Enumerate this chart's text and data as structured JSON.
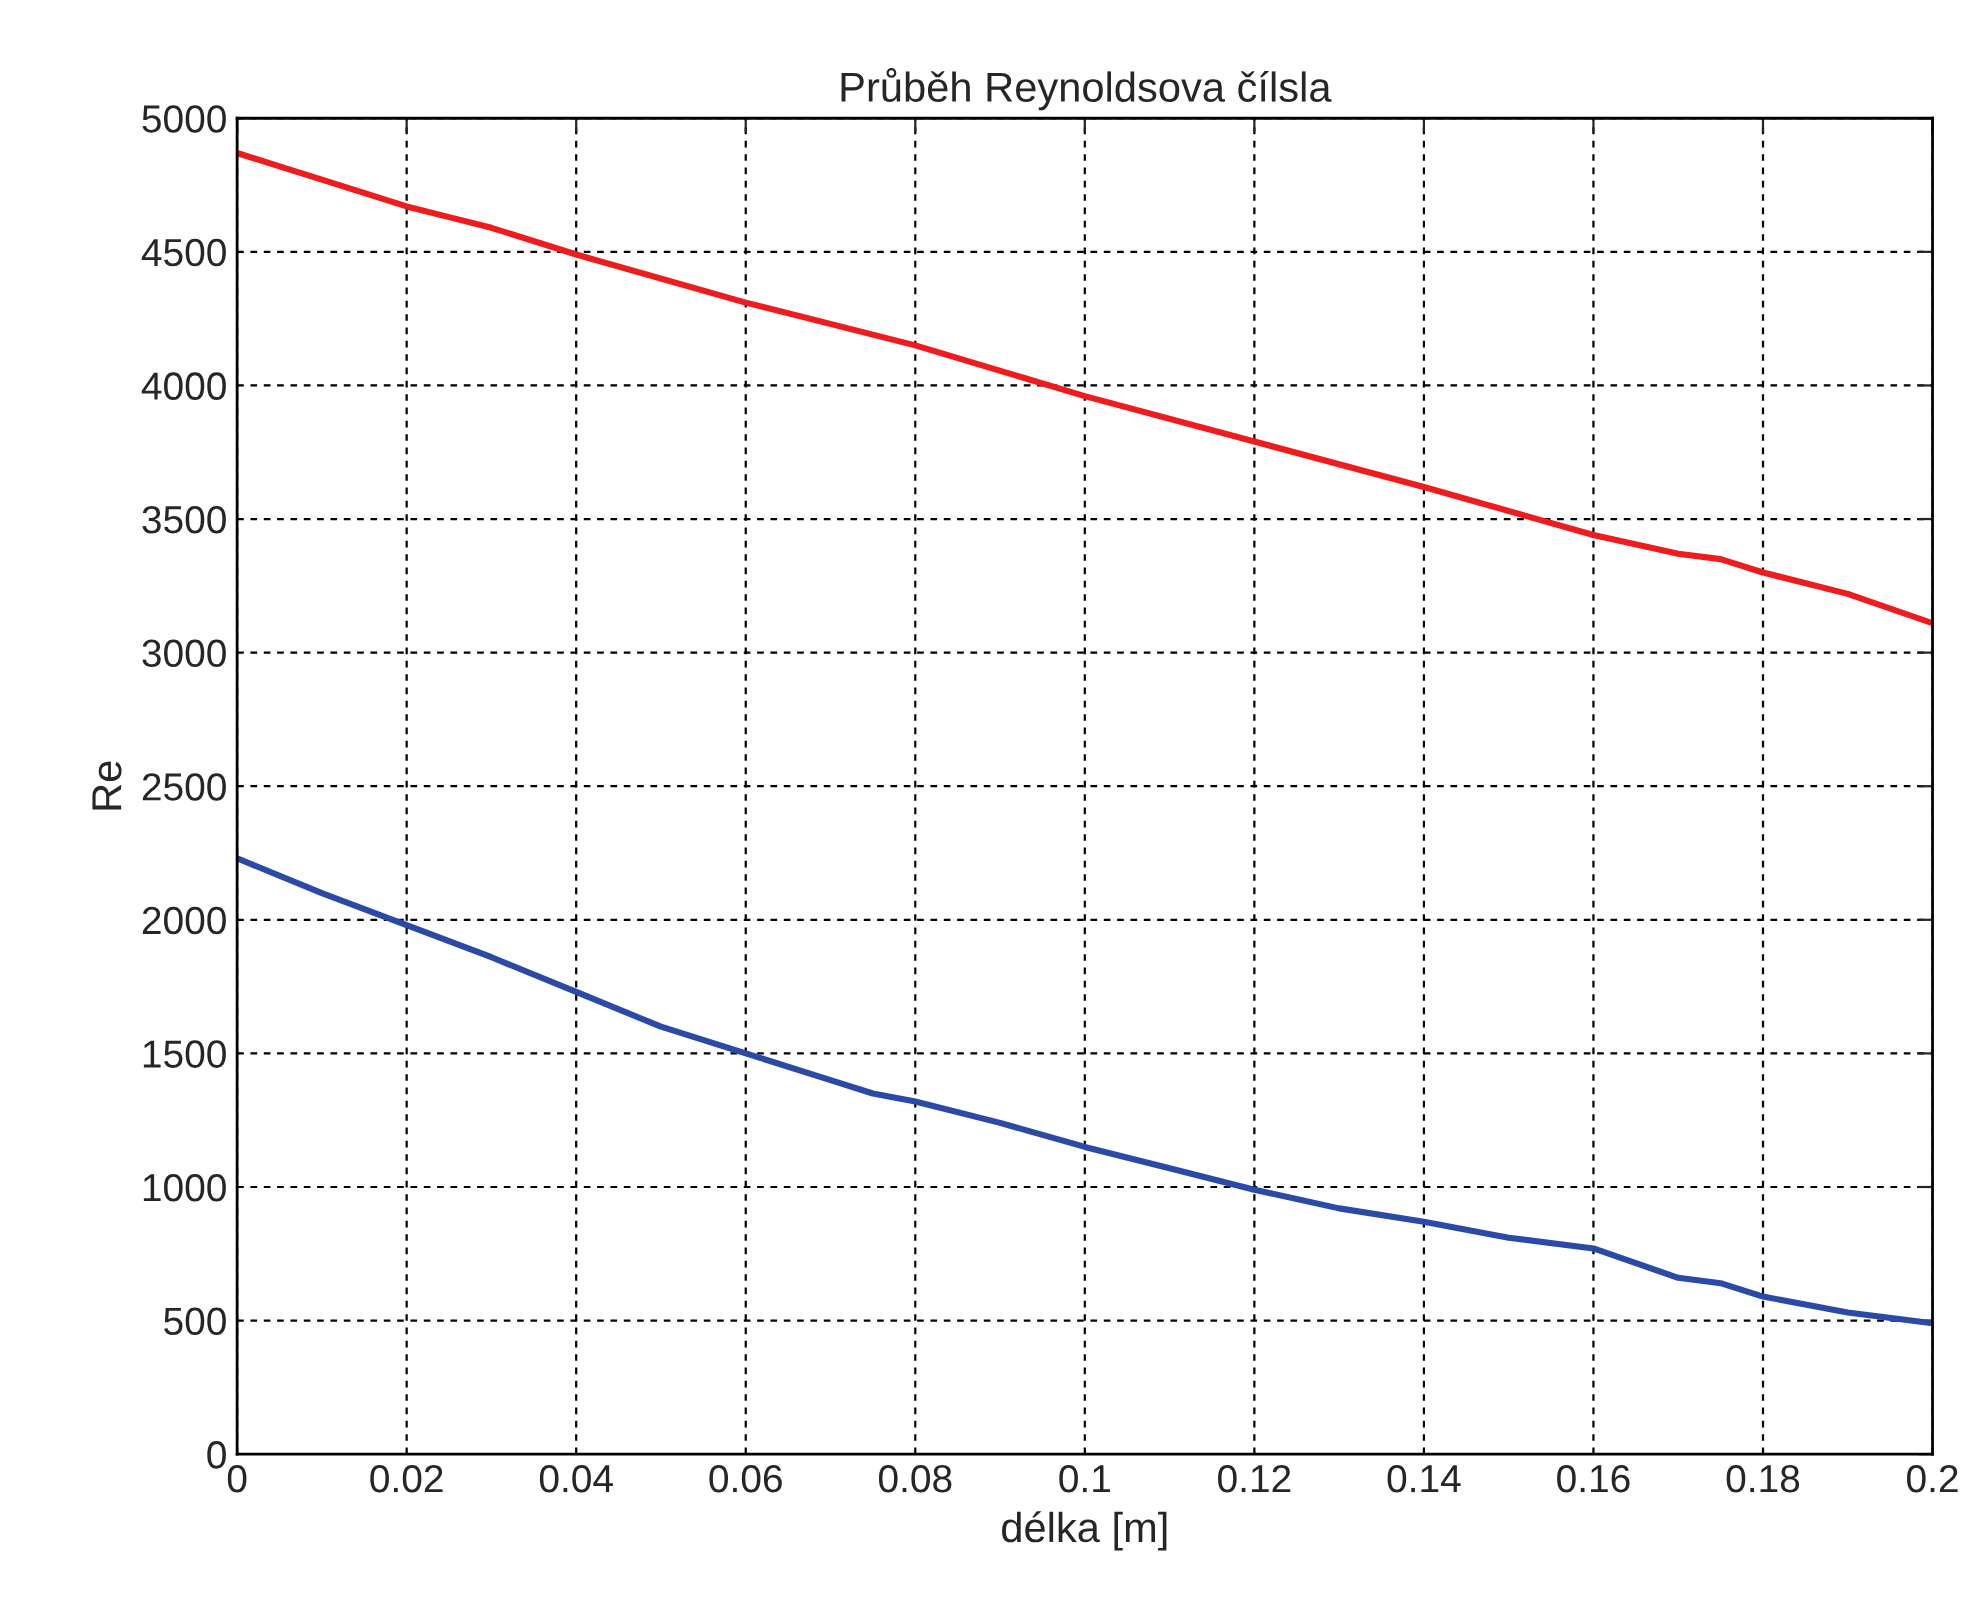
{
  "chart_data": {
    "type": "line",
    "title": "Průběh Reynoldsova čílsla",
    "xlabel": "délka [m]",
    "ylabel": "Re",
    "xlim": [
      0,
      0.2
    ],
    "xticks": [
      0,
      0.02,
      0.04,
      0.06,
      0.08,
      0.1,
      0.12,
      0.14,
      0.16,
      0.18,
      0.2
    ],
    "ylim": [
      0,
      5000
    ],
    "yticks": [
      0,
      500,
      1000,
      1500,
      2000,
      2500,
      3000,
      3500,
      4000,
      4500,
      5000
    ],
    "grid": true,
    "line_style": "solid",
    "marker": "none",
    "series": [
      {
        "color": "#ee1c1c",
        "x": [
          0,
          0.005,
          0.01,
          0.02,
          0.025,
          0.03,
          0.04,
          0.06,
          0.08,
          0.1,
          0.12,
          0.14,
          0.16,
          0.17,
          0.175,
          0.18,
          0.19,
          0.2
        ],
        "values": [
          4870,
          4820,
          4770,
          4670,
          4630,
          4590,
          4490,
          4310,
          4150,
          3960,
          3790,
          3620,
          3440,
          3370,
          3350,
          3300,
          3220,
          3110
        ]
      },
      {
        "color": "#2b4aa8",
        "x": [
          0,
          0.01,
          0.02,
          0.03,
          0.04,
          0.05,
          0.06,
          0.07,
          0.075,
          0.08,
          0.09,
          0.1,
          0.11,
          0.12,
          0.13,
          0.14,
          0.15,
          0.16,
          0.17,
          0.175,
          0.18,
          0.19,
          0.2
        ],
        "values": [
          2230,
          2100,
          1980,
          1860,
          1730,
          1600,
          1500,
          1400,
          1350,
          1320,
          1240,
          1150,
          1070,
          990,
          920,
          870,
          810,
          770,
          660,
          640,
          590,
          530,
          490
        ]
      }
    ]
  }
}
